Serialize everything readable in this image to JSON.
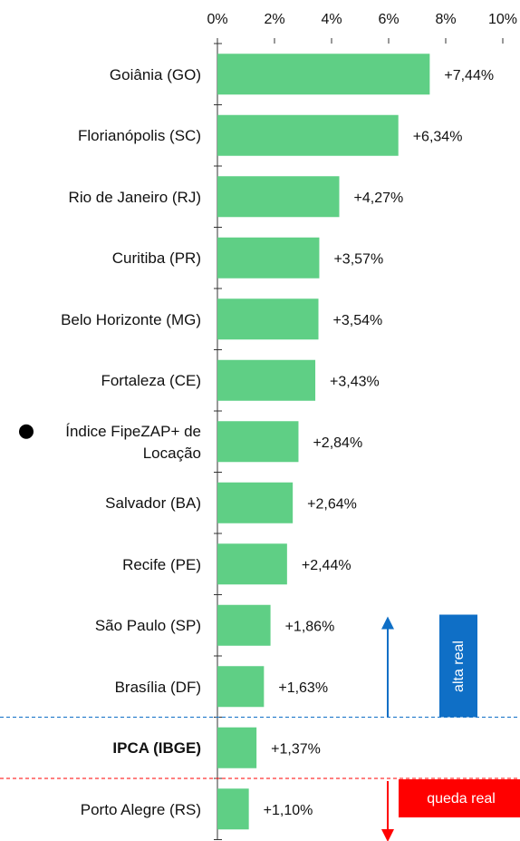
{
  "chart_data": {
    "type": "bar",
    "orientation": "horizontal",
    "categories": [
      "Goiânia (GO)",
      "Florianópolis (SC)",
      "Rio de Janeiro (RJ)",
      "Curitiba (PR)",
      "Belo Horizonte (MG)",
      "Fortaleza (CE)",
      "Índice FipeZAP+ de Locação",
      "Salvador (BA)",
      "Recife (PE)",
      "São Paulo (SP)",
      "Brasília (DF)",
      "IPCA (IBGE)",
      "Porto Alegre (RS)"
    ],
    "values": [
      7.44,
      6.34,
      4.27,
      3.57,
      3.54,
      3.43,
      2.84,
      2.64,
      2.44,
      1.86,
      1.63,
      1.37,
      1.1
    ],
    "value_labels": [
      "+7,44%",
      "+6,34%",
      "+4,27%",
      "+3,57%",
      "+3,54%",
      "+3,43%",
      "+2,84%",
      "+2,64%",
      "+2,44%",
      "+1,86%",
      "+1,63%",
      "+1,37%",
      "+1,10%"
    ],
    "color": "#5fcf85",
    "xlim": [
      0,
      10
    ],
    "xticks": [
      {
        "value": 0,
        "label": "0%"
      },
      {
        "value": 2,
        "label": "2%"
      },
      {
        "value": 4,
        "label": "4%"
      },
      {
        "value": 6,
        "label": "6%"
      },
      {
        "value": 8,
        "label": "8%"
      },
      {
        "value": 10,
        "label": "10%"
      }
    ],
    "bold_categories": [
      11
    ],
    "marker_categories": [
      6
    ],
    "annotations": [
      {
        "text": "alta real",
        "color": "#0f6fc6"
      },
      {
        "text": "queda real",
        "color": "#ff0000"
      }
    ]
  }
}
